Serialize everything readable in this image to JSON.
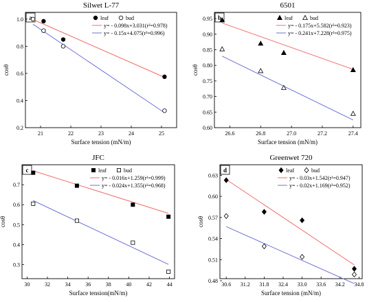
{
  "colors": {
    "leaf_fit": "#f26b6b",
    "bud_fit": "#6f70d6",
    "axis": "#000000"
  },
  "chart_data": [
    {
      "type": "scatter",
      "panel_label": "a",
      "title": "Silwet L-77",
      "xlabel": "Surface tension  (mN/m)",
      "ylabel": "cosθ",
      "xlim": [
        20.5,
        25.5
      ],
      "ylim": [
        0.2,
        1.05
      ],
      "xticks": [
        21,
        22,
        23,
        24,
        25
      ],
      "xtick_labels": [
        "21",
        "22",
        "23",
        "24",
        "25"
      ],
      "yticks": [
        0.2,
        0.4,
        0.6,
        0.8,
        1.0
      ],
      "ytick_labels": [
        "0.2",
        "0.4",
        "0.6",
        "0.8",
        "1.0"
      ],
      "legend": {
        "leaf": "leaf",
        "bud": "bud",
        "leaf_eq": "y= - 0.098x+3.031(r²=0.978)",
        "bud_eq": "y= - 0.15x+4.075(r²=0.996)"
      },
      "series": [
        {
          "name": "leaf",
          "marker": "circle-filled",
          "x": [
            21.1,
            21.75,
            25.1
          ],
          "y": [
            0.985,
            0.85,
            0.575
          ],
          "fit": {
            "slope": -0.098,
            "intercept": 3.031,
            "x_range": [
              20.75,
              25.1
            ]
          }
        },
        {
          "name": "bud",
          "marker": "circle-open",
          "x": [
            20.75,
            21.1,
            21.75,
            25.1
          ],
          "y": [
            1.0,
            0.915,
            0.8,
            0.325
          ],
          "fit": {
            "slope": -0.15,
            "intercept": 4.075,
            "x_range": [
              20.75,
              25.1
            ]
          }
        }
      ]
    },
    {
      "type": "scatter",
      "panel_label": "b",
      "title": "6501",
      "xlabel": "Surface tension  (mN/m)",
      "ylabel": "cosθ",
      "xlim": [
        26.5,
        27.45
      ],
      "ylim": [
        0.6,
        0.97
      ],
      "xticks": [
        26.6,
        26.8,
        27.0,
        27.2,
        27.4
      ],
      "xtick_labels": [
        "26.6",
        "26.8",
        "27.0",
        "27.2",
        "27.4"
      ],
      "yticks": [
        0.6,
        0.65,
        0.7,
        0.75,
        0.8,
        0.85,
        0.9,
        0.95
      ],
      "ytick_labels": [
        "0.60",
        "0.65",
        "0.70",
        "0.75",
        "0.80",
        "0.85",
        "0.90",
        "0.95"
      ],
      "legend": {
        "leaf": "leaf",
        "bud": "bud",
        "leaf_eq": "y= - 0.175x+5.582(r²=0.923)",
        "bud_eq": "y= - 0.241x+7.228(r²=0.975)"
      },
      "series": [
        {
          "name": "leaf",
          "marker": "triangle-filled",
          "x": [
            26.55,
            26.8,
            26.95,
            27.4
          ],
          "y": [
            0.945,
            0.87,
            0.84,
            0.785
          ],
          "fit": {
            "slope": -0.175,
            "intercept": 5.582,
            "x_range": [
              26.55,
              27.4
            ]
          }
        },
        {
          "name": "bud",
          "marker": "triangle-open",
          "x": [
            26.55,
            26.8,
            26.95,
            27.4
          ],
          "y": [
            0.852,
            0.782,
            0.728,
            0.645
          ],
          "fit": {
            "slope": -0.241,
            "intercept": 7.228,
            "x_range": [
              26.55,
              27.4
            ]
          }
        }
      ]
    },
    {
      "type": "scatter",
      "panel_label": "c",
      "title": "JFC",
      "xlabel": "Surface tension(mN/m)",
      "ylabel": "cosθ",
      "xlim": [
        29.5,
        44.5
      ],
      "ylim": [
        0.23,
        0.8
      ],
      "xticks": [
        30,
        32,
        34,
        36,
        38,
        40,
        42,
        44
      ],
      "xtick_labels": [
        "30",
        "32",
        "34",
        "36",
        "38",
        "40",
        "42",
        "44"
      ],
      "yticks": [
        0.3,
        0.4,
        0.5,
        0.6,
        0.7
      ],
      "ytick_labels": [
        "0.3",
        "0.4",
        "0.5",
        "0.6",
        "0.7"
      ],
      "legend": {
        "leaf": "leaf",
        "bud": "bud",
        "leaf_eq": "y= - 0.016x+1.259(r²=0.999)",
        "bud_eq": "y= - 0.024x+1.355(r²=0.968)"
      },
      "series": [
        {
          "name": "leaf",
          "marker": "square-filled",
          "x": [
            30.6,
            34.9,
            40.4,
            43.9
          ],
          "y": [
            0.76,
            0.695,
            0.6,
            0.54
          ],
          "fit": {
            "slope": -0.016,
            "intercept": 1.259,
            "x_range": [
              30.6,
              43.9
            ]
          }
        },
        {
          "name": "bud",
          "marker": "square-open",
          "x": [
            30.6,
            34.9,
            40.4,
            43.9
          ],
          "y": [
            0.605,
            0.52,
            0.41,
            0.265
          ],
          "fit": {
            "slope": -0.024,
            "intercept": 1.355,
            "x_range": [
              30.6,
              43.9
            ]
          }
        }
      ]
    },
    {
      "type": "scatter",
      "panel_label": "d",
      "title": "Greenwet 720",
      "xlabel": "Surface tension  (mN/m)",
      "ylabel": "cosθ",
      "xlim": [
        30.4,
        34.9
      ],
      "ylim": [
        0.483,
        0.645
      ],
      "xticks": [
        30.6,
        31.2,
        31.8,
        32.4,
        33.0,
        33.6,
        34.2,
        34.8
      ],
      "xtick_labels": [
        "30.6",
        "31.2",
        "31.8",
        "32.4",
        "33.0",
        "33.6",
        "34.2",
        "34.8"
      ],
      "yticks": [
        0.48,
        0.51,
        0.54,
        0.57,
        0.6,
        0.63
      ],
      "ytick_labels": [
        "0.48",
        "0.51",
        "0.54",
        "0.57",
        "0.60",
        "0.63"
      ],
      "legend": {
        "leaf": "leaf",
        "bud": "bud",
        "leaf_eq": "y= - 0.03x+1.542(r²=0.947)",
        "bud_eq": "y= - 0.02x+1.169(r²=0.952)"
      },
      "series": [
        {
          "name": "leaf",
          "marker": "diamond-filled",
          "x": [
            30.6,
            31.8,
            33.0,
            34.65
          ],
          "y": [
            0.623,
            0.578,
            0.566,
            0.497
          ],
          "fit": {
            "slope": -0.03,
            "intercept": 1.542,
            "x_range": [
              30.6,
              34.65
            ]
          }
        },
        {
          "name": "bud",
          "marker": "diamond-open",
          "x": [
            30.6,
            31.8,
            33.0,
            34.65
          ],
          "y": [
            0.572,
            0.529,
            0.514,
            0.489
          ],
          "fit": {
            "slope": -0.02,
            "intercept": 1.169,
            "x_range": [
              30.6,
              34.65
            ]
          }
        }
      ]
    }
  ]
}
